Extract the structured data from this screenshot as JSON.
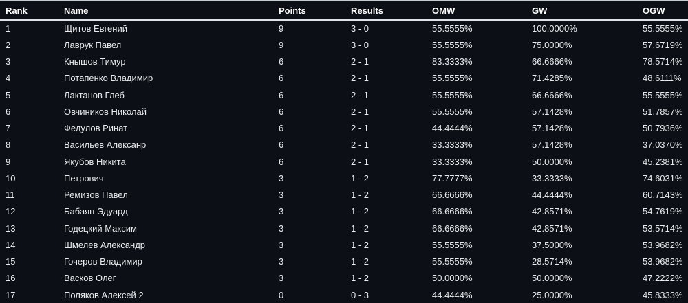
{
  "table": {
    "columns": [
      {
        "key": "rank",
        "label": "Rank"
      },
      {
        "key": "name",
        "label": "Name"
      },
      {
        "key": "points",
        "label": "Points"
      },
      {
        "key": "results",
        "label": "Results"
      },
      {
        "key": "omw",
        "label": "OMW"
      },
      {
        "key": "gw",
        "label": "GW"
      },
      {
        "key": "ogw",
        "label": "OGW"
      }
    ],
    "rows": [
      {
        "rank": "1",
        "name": "Щитов Евгений",
        "points": "9",
        "results": "3 - 0",
        "omw": "55.5555%",
        "gw": "100.0000%",
        "ogw": "55.5555%"
      },
      {
        "rank": "2",
        "name": "Лаврук Павел",
        "points": "9",
        "results": "3 - 0",
        "omw": "55.5555%",
        "gw": "75.0000%",
        "ogw": "57.6719%"
      },
      {
        "rank": "3",
        "name": "Кнышов Тимур",
        "points": "6",
        "results": "2 - 1",
        "omw": "83.3333%",
        "gw": "66.6666%",
        "ogw": "78.5714%"
      },
      {
        "rank": "4",
        "name": "Потапенко Владимир",
        "points": "6",
        "results": "2 - 1",
        "omw": "55.5555%",
        "gw": "71.4285%",
        "ogw": "48.6111%"
      },
      {
        "rank": "5",
        "name": "Лактанов Глеб",
        "points": "6",
        "results": "2 - 1",
        "omw": "55.5555%",
        "gw": "66.6666%",
        "ogw": "55.5555%"
      },
      {
        "rank": "6",
        "name": "Овчиников Николай",
        "points": "6",
        "results": "2 - 1",
        "omw": "55.5555%",
        "gw": "57.1428%",
        "ogw": "51.7857%"
      },
      {
        "rank": "7",
        "name": "Федулов Ринат",
        "points": "6",
        "results": "2 - 1",
        "omw": "44.4444%",
        "gw": "57.1428%",
        "ogw": "50.7936%"
      },
      {
        "rank": "8",
        "name": "Васильев Алексанр",
        "points": "6",
        "results": "2 - 1",
        "omw": "33.3333%",
        "gw": "57.1428%",
        "ogw": "37.0370%"
      },
      {
        "rank": "9",
        "name": "Якубов Никита",
        "points": "6",
        "results": "2 - 1",
        "omw": "33.3333%",
        "gw": "50.0000%",
        "ogw": "45.2381%"
      },
      {
        "rank": "10",
        "name": "Петрович",
        "points": "3",
        "results": "1 - 2",
        "omw": "77.7777%",
        "gw": "33.3333%",
        "ogw": "74.6031%"
      },
      {
        "rank": "11",
        "name": "Ремизов Павел",
        "points": "3",
        "results": "1 - 2",
        "omw": "66.6666%",
        "gw": "44.4444%",
        "ogw": "60.7143%"
      },
      {
        "rank": "12",
        "name": "Бабаян Эдуард",
        "points": "3",
        "results": "1 - 2",
        "omw": "66.6666%",
        "gw": "42.8571%",
        "ogw": "54.7619%"
      },
      {
        "rank": "13",
        "name": "Годецкий Максим",
        "points": "3",
        "results": "1 - 2",
        "omw": "66.6666%",
        "gw": "42.8571%",
        "ogw": "53.5714%"
      },
      {
        "rank": "14",
        "name": "Шмелев Александр",
        "points": "3",
        "results": "1 - 2",
        "omw": "55.5555%",
        "gw": "37.5000%",
        "ogw": "53.9682%"
      },
      {
        "rank": "15",
        "name": "Гочеров Владимир",
        "points": "3",
        "results": "1 - 2",
        "omw": "55.5555%",
        "gw": "28.5714%",
        "ogw": "53.9682%"
      },
      {
        "rank": "16",
        "name": "Васков Олег",
        "points": "3",
        "results": "1 - 2",
        "omw": "50.0000%",
        "gw": "50.0000%",
        "ogw": "47.2222%"
      },
      {
        "rank": "17",
        "name": "Поляков Алексей 2",
        "points": "0",
        "results": "0 - 3",
        "omw": "44.4444%",
        "gw": "25.0000%",
        "ogw": "45.8333%"
      }
    ]
  },
  "colors": {
    "background": "#0c0f15",
    "row_text": "#e9ebee",
    "header_text": "#ffffff",
    "top_border": "#c6cad1",
    "header_underline": "#dfe2e6"
  }
}
